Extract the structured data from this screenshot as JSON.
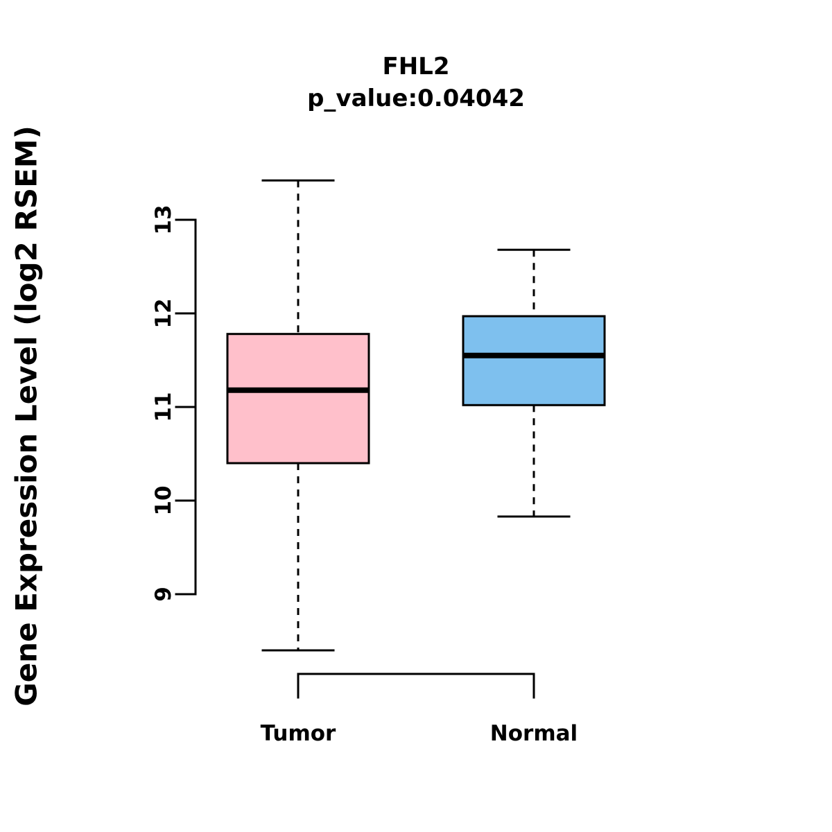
{
  "chart_data": {
    "type": "boxplot",
    "title": "FHL2",
    "subtitle": "p_value:0.04042",
    "ylabel": "Gene Expression Level (log2 RSEM)",
    "yticks": [
      9,
      10,
      11,
      12,
      13
    ],
    "ylim": [
      8.2,
      13.6
    ],
    "grid": false,
    "categories": [
      "Tumor",
      "Normal"
    ],
    "series": [
      {
        "name": "Tumor",
        "color": "#FFC0CB",
        "lower_whisker": 8.4,
        "q1": 10.4,
        "median": 11.18,
        "q3": 11.78,
        "upper_whisker": 13.42
      },
      {
        "name": "Normal",
        "color": "#7EC0EE",
        "lower_whisker": 9.83,
        "q1": 11.02,
        "median": 11.55,
        "q3": 11.97,
        "upper_whisker": 12.68
      }
    ],
    "colors": {
      "box_border": "#000000",
      "median_line": "#000000",
      "whisker": "#000000",
      "axis": "#000000"
    }
  }
}
